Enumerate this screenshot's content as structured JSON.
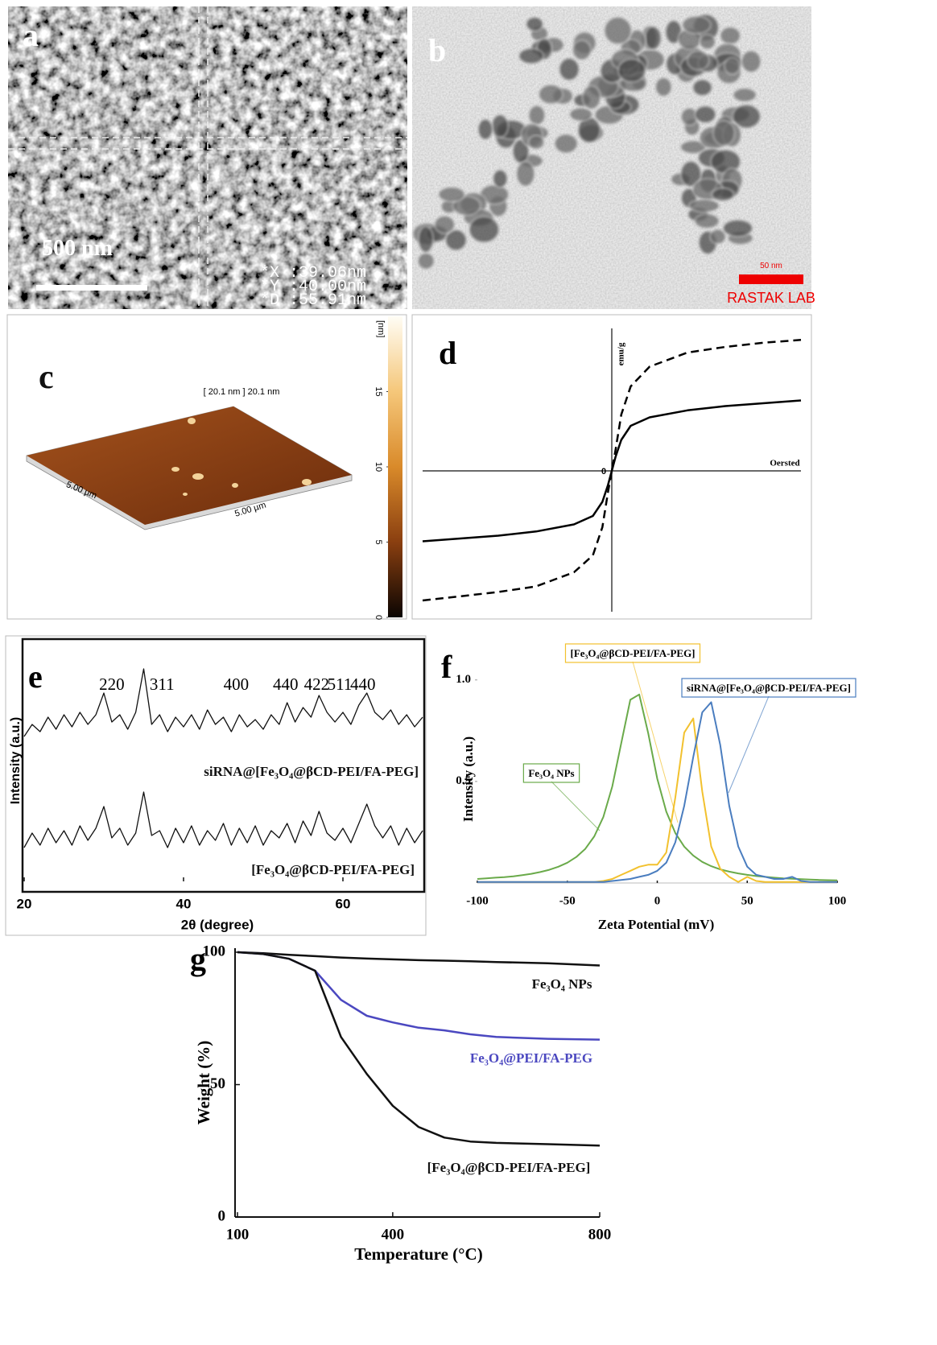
{
  "panels": {
    "a": {
      "label": "a",
      "scale_bar": "500 nm",
      "readout": [
        "*X :39.06nm",
        "*Y :40.00nm",
        "*D :55.91nm"
      ]
    },
    "b": {
      "label": "b",
      "scale_bar": "50 nm",
      "credit": "RASTAK LAB"
    },
    "c": {
      "label": "c",
      "title": "[ 20.1 nm ] 20.1 nm",
      "x_size": "5.00 µm",
      "y_size": "5.00 µm",
      "colorbar_unit": "[nm]",
      "colorbar_lim": [
        0,
        20
      ],
      "colorbar_ticks": [
        0,
        5,
        10,
        15
      ]
    }
  },
  "chart_data": [
    {
      "type": "line",
      "label": "d",
      "x_label": "Oersted",
      "y_label": "emu/g",
      "xlim": [
        -1,
        1
      ],
      "ylim": [
        -1,
        1
      ],
      "xticks": [
        0
      ],
      "x": [
        -1,
        -0.8,
        -0.6,
        -0.4,
        -0.2,
        -0.1,
        -0.05,
        -0.02,
        0,
        0.02,
        0.05,
        0.1,
        0.2,
        0.4,
        0.6,
        0.8,
        1
      ],
      "series": [
        {
          "color": "#000000",
          "style": "solid",
          "values": [
            -0.5,
            -0.48,
            -0.46,
            -0.43,
            -0.38,
            -0.32,
            -0.22,
            -0.1,
            0,
            0.1,
            0.22,
            0.32,
            0.38,
            0.43,
            0.46,
            0.48,
            0.5
          ]
        },
        {
          "color": "#000000",
          "style": "dashed",
          "values": [
            -0.92,
            -0.89,
            -0.86,
            -0.82,
            -0.72,
            -0.6,
            -0.4,
            -0.15,
            0,
            0.15,
            0.4,
            0.6,
            0.74,
            0.84,
            0.88,
            0.91,
            0.93
          ]
        }
      ]
    },
    {
      "type": "line",
      "label": "e",
      "x_label": "2θ (degree)",
      "y_label": "Intensity (a.u.)",
      "xlim": [
        20,
        70
      ],
      "ylim": [
        0,
        10
      ],
      "xticks": [
        20,
        40,
        60
      ],
      "annotations": [
        {
          "text": "220",
          "x": 31
        },
        {
          "text": "311",
          "x": 37.3
        },
        {
          "text": "400",
          "x": 46.6
        },
        {
          "text": "440",
          "x": 52.8
        },
        {
          "text": "422",
          "x": 56.7
        },
        {
          "text": "511",
          "x": 59.6
        },
        {
          "text": "440",
          "x": 62.5
        }
      ],
      "x": [
        20,
        21,
        22,
        23,
        24,
        25,
        26,
        27,
        28,
        29,
        30,
        31,
        32,
        33,
        34,
        35,
        36,
        37,
        38,
        39,
        40,
        41,
        42,
        43,
        44,
        45,
        46,
        47,
        48,
        49,
        50,
        51,
        52,
        53,
        54,
        55,
        56,
        57,
        58,
        59,
        60,
        61,
        62,
        63,
        64,
        65,
        66,
        67,
        68,
        69,
        70
      ],
      "series": [
        {
          "name": "siRNA@[Fe₃O₄@βCD-PEI/FA-PEG]",
          "color": "#111111",
          "values": [
            6.0,
            6.5,
            6.2,
            6.8,
            6.3,
            6.9,
            6.4,
            7.0,
            6.5,
            6.9,
            7.8,
            6.6,
            6.9,
            6.3,
            7.0,
            8.8,
            6.5,
            6.9,
            6.2,
            6.8,
            6.4,
            6.9,
            6.3,
            7.1,
            6.5,
            6.8,
            6.2,
            6.9,
            6.4,
            6.7,
            6.3,
            6.9,
            6.5,
            7.4,
            6.6,
            7.2,
            6.8,
            7.7,
            7.0,
            6.6,
            7.0,
            6.5,
            7.3,
            7.8,
            7.0,
            6.7,
            7.1,
            6.5,
            6.9,
            6.4,
            6.8
          ]
        },
        {
          "name": "[Fe₃O₄@βCD-PEI/FA-PEG]",
          "color": "#111111",
          "values": [
            1.4,
            2.0,
            1.5,
            2.2,
            1.6,
            2.1,
            1.5,
            2.3,
            1.7,
            2.2,
            3.1,
            1.8,
            2.2,
            1.5,
            2.0,
            3.7,
            1.9,
            2.1,
            1.4,
            2.2,
            1.6,
            2.3,
            1.5,
            2.1,
            1.7,
            2.4,
            1.5,
            2.2,
            1.6,
            2.3,
            1.5,
            2.1,
            1.8,
            2.4,
            1.6,
            2.5,
            1.9,
            2.9,
            2.0,
            1.7,
            2.2,
            1.6,
            2.4,
            3.2,
            2.3,
            1.8,
            2.3,
            1.5,
            2.2,
            1.6,
            2.1
          ]
        }
      ]
    },
    {
      "type": "line",
      "label": "f",
      "x_label": "Zeta Potential (mV)",
      "y_label": "Intensity (a.u.)",
      "xlim": [
        -100,
        100
      ],
      "ylim": [
        0,
        1.05
      ],
      "xticks": [
        -100,
        -50,
        0,
        50,
        100
      ],
      "yticks": [
        0.5,
        {
          "value": 1,
          "label": "1.0"
        }
      ],
      "x": [
        -100,
        -95,
        -90,
        -85,
        -80,
        -75,
        -70,
        -65,
        -60,
        -55,
        -50,
        -45,
        -40,
        -35,
        -30,
        -25,
        -20,
        -15,
        -10,
        -5,
        0,
        5,
        10,
        15,
        20,
        25,
        30,
        35,
        40,
        45,
        50,
        55,
        60,
        65,
        70,
        75,
        80,
        85,
        90,
        95,
        100
      ],
      "series": [
        {
          "name": "Fe₃O₄ NPs",
          "color": "#6aaa4a",
          "values": [
            0.02,
            0.023,
            0.026,
            0.029,
            0.033,
            0.039,
            0.045,
            0.054,
            0.065,
            0.08,
            0.1,
            0.128,
            0.168,
            0.23,
            0.325,
            0.475,
            0.689,
            0.902,
            0.928,
            0.736,
            0.513,
            0.351,
            0.246,
            0.179,
            0.135,
            0.104,
            0.083,
            0.067,
            0.056,
            0.047,
            0.04,
            0.034,
            0.03,
            0.026,
            0.023,
            0.021,
            0.019,
            0.017,
            0.015,
            0.014,
            0.013
          ]
        },
        {
          "name": "[Fe₃O₄@βCD-PEI/FA-PEG]",
          "color": "#f2c12e",
          "values": [
            0.005,
            0.005,
            0.005,
            0.005,
            0.005,
            0.005,
            0.005,
            0.005,
            0.005,
            0.005,
            0.005,
            0.005,
            0.005,
            0.005,
            0.01,
            0.02,
            0.04,
            0.06,
            0.08,
            0.09,
            0.09,
            0.15,
            0.42,
            0.74,
            0.81,
            0.45,
            0.18,
            0.07,
            0.03,
            0.005,
            0.03,
            0.01,
            0.005,
            0.005,
            0.005,
            0.005,
            0.005,
            0.005,
            0.005,
            0.005,
            0.005
          ]
        },
        {
          "name": "siRNA@[Fe₃O₄@βCD-PEI/FA-PEG]",
          "color": "#4a7dbf",
          "values": [
            0.005,
            0.005,
            0.005,
            0.005,
            0.005,
            0.005,
            0.005,
            0.005,
            0.005,
            0.005,
            0.005,
            0.005,
            0.005,
            0.005,
            0.005,
            0.01,
            0.015,
            0.02,
            0.03,
            0.04,
            0.06,
            0.1,
            0.2,
            0.38,
            0.62,
            0.84,
            0.89,
            0.68,
            0.38,
            0.18,
            0.08,
            0.04,
            0.03,
            0.02,
            0.02,
            0.03,
            0.01,
            0.005,
            0.005,
            0.005,
            0.005
          ]
        }
      ]
    },
    {
      "type": "line",
      "label": "g",
      "x_label": "Temperature (°C)",
      "y_label": "Weight (%)",
      "xlim": [
        100,
        800
      ],
      "ylim": [
        0,
        100
      ],
      "xticks": [
        100,
        400,
        800
      ],
      "yticks": [
        0,
        50,
        100
      ],
      "x": [
        100,
        150,
        200,
        250,
        300,
        350,
        400,
        450,
        500,
        550,
        600,
        700,
        800
      ],
      "series": [
        {
          "name": "Fe₃O₄ NPs",
          "color": "#111111",
          "values": [
            100,
            99.6,
            99,
            98.5,
            98,
            97.6,
            97.3,
            97,
            96.8,
            96.6,
            96.3,
            95.8,
            95
          ]
        },
        {
          "name": "Fe₃O₄@PEI/FA-PEG",
          "color": "#4b48c0",
          "values": [
            100,
            99.3,
            97.5,
            93,
            82,
            76,
            73.5,
            71.5,
            70.5,
            69,
            68,
            67.3,
            67
          ]
        },
        {
          "name": "[Fe₃O₄@βCD-PEI/FA-PEG]",
          "color": "#111111",
          "values": [
            100,
            99.3,
            97.5,
            93,
            68,
            54,
            42,
            34,
            30,
            28.5,
            28,
            27.5,
            27
          ]
        }
      ]
    }
  ]
}
